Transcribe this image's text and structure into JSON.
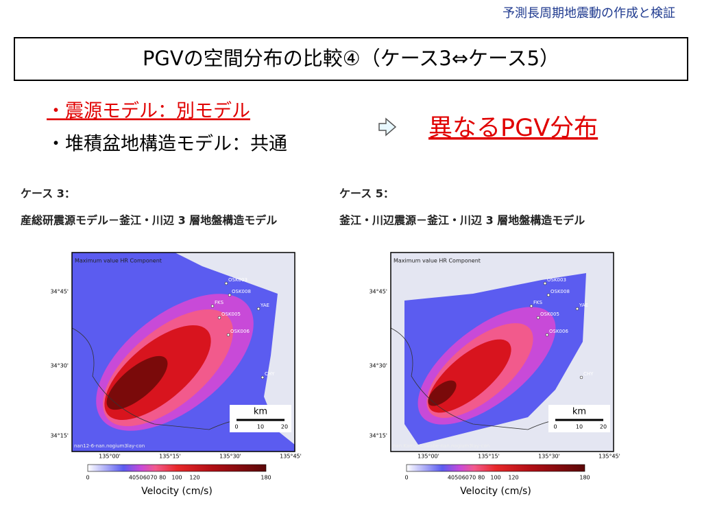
{
  "header": {
    "subtitle": "予測長周期地震動の作成と検証"
  },
  "title": "PGVの空間分布の比較④（ケース3⇔ケース5）",
  "bullets": [
    "・震源モデル：別モデル",
    "・堆積盆地構造モデル：共通"
  ],
  "conclusion": "異なるPGV分布",
  "panels": [
    {
      "case_label": "ケース 3：",
      "model": "産総研震源モデル－釜江・川辺 3 層地盤構造モデル",
      "map": {
        "caption": "Maximum value HR Component",
        "stations": [
          "OSK003",
          "OSK008",
          "FKS",
          "OSK005",
          "YAE",
          "OSK006",
          "CHY"
        ],
        "lat_labels": [
          "34°45'",
          "34°30'",
          "34°15'"
        ],
        "lon_labels": [
          "135°00'",
          "135°15'",
          "135°30'",
          "135°45'"
        ],
        "scale_unit": "km",
        "scale_ticks": [
          0,
          10,
          20
        ],
        "file": "nan12-6-nan.nogium3lay-con"
      },
      "colorbar": {
        "ticks": [
          0,
          40,
          50,
          60,
          70,
          80,
          100,
          120,
          180
        ],
        "label": "Velocity (cm/s)"
      }
    },
    {
      "case_label": "ケース 5：",
      "model": "釜江・川辺震源－釜江・川辺 3 層地盤構造モデル",
      "map": {
        "caption": "Maximum value HR Component",
        "stations": [
          "OSK003",
          "OSK008",
          "FKS",
          "OSK005",
          "YAE",
          "OSK006",
          "CHY"
        ],
        "lat_labels": [
          "34°45'",
          "34°30'",
          "34°15'"
        ],
        "lon_labels": [
          "135°00'",
          "135°15'",
          "135°30'",
          "135°45'"
        ],
        "scale_unit": "km",
        "scale_ticks": [
          0,
          10,
          20
        ],
        "file": "nan.KamaeKawabe-nan.nogium3lay-con"
      },
      "colorbar": {
        "ticks": [
          0,
          40,
          50,
          60,
          70,
          80,
          100,
          120,
          180
        ],
        "label": "Velocity (cm/s)"
      }
    }
  ]
}
